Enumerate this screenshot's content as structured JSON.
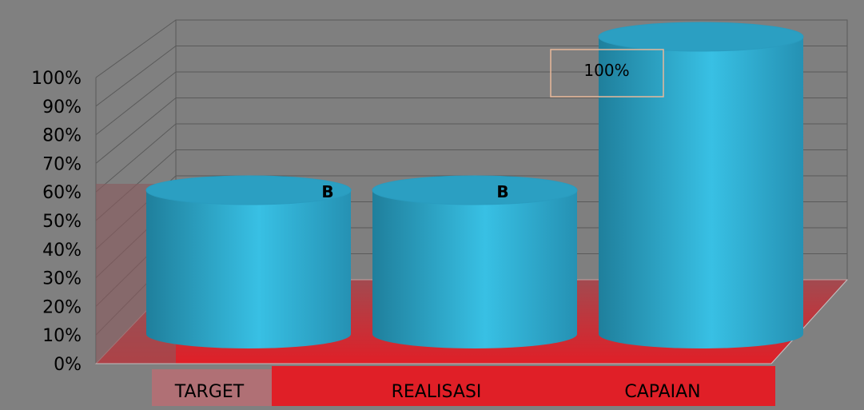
{
  "chart_data": {
    "type": "bar",
    "subtype": "3d-cylinder",
    "title": "",
    "xlabel": "",
    "ylabel": "",
    "categories": [
      "TARGET",
      "REALISASI",
      "CAPAIAN"
    ],
    "values": [
      0.6,
      0.6,
      1.0
    ],
    "data_labels": [
      "B",
      "B",
      "100%"
    ],
    "y_ticks": [
      "0%",
      "10%",
      "20%",
      "30%",
      "40%",
      "50%",
      "60%",
      "70%",
      "80%",
      "90%",
      "100%"
    ],
    "ylim": [
      0,
      1
    ],
    "grid": true,
    "legend": "none"
  },
  "colors": {
    "background": "#808080",
    "wall": "#7f7f7f",
    "floor": "#e01f27",
    "bar": "#2ea8cc",
    "bar_highlight": "#38c0e4",
    "bar_shadow": "#1f7f9c",
    "grid": "#5a5a5a",
    "callout_border": "#e8b89a"
  }
}
